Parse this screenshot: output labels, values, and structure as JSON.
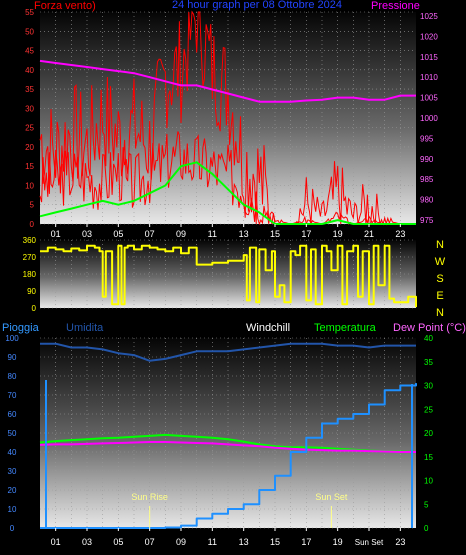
{
  "colors": {
    "background": "#000000",
    "wind": "#ff0000",
    "gust": "#ff0000",
    "pressure": "#ff00ff",
    "green": "#00ff00",
    "direction": "#ffff00",
    "humidity": "#2255aa",
    "rain": "#1e90ff",
    "temperature": "#00ff00",
    "dewpoint": "#ff00ff",
    "windchill": "#ffffff",
    "sun": "#ffff88"
  },
  "chart_data": [
    {
      "type": "line",
      "title": "24 hour graph per  08 Ottobre 2024",
      "left_axis_label": "Forza vento)",
      "right_axis_label": "Pressione",
      "x_hours": [
        0,
        1,
        2,
        3,
        4,
        5,
        6,
        7,
        8,
        9,
        10,
        11,
        12,
        13,
        14,
        15,
        16,
        17,
        18,
        19,
        20,
        21,
        22,
        23,
        24
      ],
      "xticks": [
        "01",
        "03",
        "05",
        "07",
        "09",
        "11",
        "13",
        "15",
        "17",
        "19",
        "21",
        "23"
      ],
      "left_ylim": [
        0,
        55
      ],
      "left_yticks": [
        0,
        5,
        10,
        15,
        20,
        25,
        30,
        35,
        40,
        45,
        50,
        55
      ],
      "right_ylim": [
        974,
        1026
      ],
      "right_yticks": [
        975,
        980,
        985,
        990,
        995,
        1000,
        1005,
        1010,
        1015,
        1020,
        1025
      ],
      "series": [
        {
          "key": "gust",
          "axis": "left",
          "values": [
            22,
            18,
            24,
            20,
            28,
            22,
            25,
            20,
            38,
            40,
            55,
            40,
            35,
            16,
            12,
            0,
            0,
            5,
            2,
            7,
            2,
            5,
            1,
            0,
            0
          ]
        },
        {
          "key": "wind",
          "axis": "left",
          "values": [
            10,
            12,
            13,
            12,
            11,
            14,
            10,
            13,
            16,
            18,
            16,
            15,
            13,
            10,
            6,
            1,
            0,
            1,
            0,
            2,
            0,
            1,
            0,
            0,
            0
          ]
        },
        {
          "key": "green",
          "axis": "left",
          "values": [
            2,
            3,
            4,
            5,
            6,
            5,
            6,
            8,
            10,
            15,
            16,
            13,
            9,
            5,
            3,
            0,
            0,
            0,
            0,
            1,
            0,
            0,
            0,
            0,
            0
          ]
        },
        {
          "key": "pressure",
          "axis": "right",
          "values": [
            1014,
            1013.5,
            1013,
            1012.5,
            1012,
            1011.5,
            1011,
            1010,
            1009,
            1008,
            1008,
            1007,
            1006,
            1005,
            1004,
            1004,
            1004,
            1004.3,
            1004.5,
            1005,
            1005,
            1004.5,
            1004.5,
            1005.5,
            1005.5
          ]
        }
      ]
    },
    {
      "type": "line",
      "title": "",
      "right_axis_label": [
        "N",
        "W",
        "S",
        "E",
        "N"
      ],
      "ylim": [
        0,
        360
      ],
      "yticks": [
        0,
        90,
        180,
        270,
        360
      ],
      "series": [
        {
          "key": "direction",
          "x": [
            0,
            0.5,
            1,
            1.5,
            2,
            2.5,
            3,
            3.5,
            3.8,
            4,
            4.2,
            4.6,
            5,
            5.2,
            5.4,
            5.6,
            6,
            6.5,
            7,
            7.5,
            8,
            8.5,
            9,
            9.5,
            10,
            11,
            12,
            13,
            13.2,
            13.4,
            13.8,
            14,
            14.4,
            14.8,
            15,
            15.3,
            15.6,
            16,
            16.3,
            16.6,
            17,
            17.3,
            17.6,
            18,
            18.3,
            18.6,
            19,
            19.3,
            19.6,
            20,
            20.3,
            20.6,
            21,
            21.3,
            21.6,
            22,
            22.3,
            22.6,
            23,
            23.5,
            24
          ],
          "values": [
            300,
            320,
            310,
            300,
            315,
            305,
            330,
            320,
            300,
            60,
            300,
            20,
            330,
            20,
            320,
            330,
            310,
            330,
            320,
            310,
            300,
            320,
            290,
            320,
            230,
            240,
            250,
            280,
            40,
            320,
            30,
            310,
            200,
            300,
            60,
            120,
            30,
            300,
            280,
            330,
            40,
            310,
            20,
            330,
            300,
            200,
            330,
            20,
            300,
            330,
            60,
            300,
            20,
            330,
            120,
            330,
            50,
            30,
            30,
            60,
            5
          ]
        }
      ]
    },
    {
      "type": "line",
      "legend": [
        "Pioggia",
        "Umidita",
        "Windchill",
        "Temperatura",
        "Dew Point (°C)"
      ],
      "left_ylim": [
        0,
        100
      ],
      "left_yticks": [
        0,
        10,
        20,
        30,
        40,
        50,
        60,
        70,
        80,
        90,
        100
      ],
      "right_ylim": [
        0,
        40
      ],
      "right_yticks": [
        0,
        5,
        10,
        15,
        20,
        25,
        30,
        35,
        40
      ],
      "xticks": [
        "01",
        "03",
        "05",
        "07",
        "09",
        "11",
        "13",
        "15",
        "17",
        "19",
        "Sun Set",
        "23"
      ],
      "x_hours": [
        0,
        1,
        2,
        3,
        4,
        5,
        6,
        7,
        8,
        9,
        10,
        11,
        12,
        13,
        14,
        15,
        16,
        17,
        18,
        19,
        20,
        21,
        22,
        23,
        24
      ],
      "series": [
        {
          "key": "humidity",
          "axis": "left",
          "values": [
            97,
            97,
            95,
            95,
            94,
            92,
            91,
            88,
            89,
            91,
            93,
            93,
            93,
            94,
            95,
            96,
            97,
            97,
            97,
            96,
            96,
            95,
            96,
            96,
            96
          ]
        },
        {
          "key": "temperature",
          "axis": "right",
          "values": [
            18,
            18.3,
            18.5,
            18.7,
            18.9,
            19.0,
            19.2,
            19.4,
            19.6,
            19.4,
            19.2,
            19.0,
            18.7,
            18.2,
            17.6,
            17.2,
            17.0,
            17.0,
            16.9,
            16.7,
            16.5,
            16.3,
            16.2,
            16.1,
            16.0
          ]
        },
        {
          "key": "dewpoint",
          "axis": "right",
          "values": [
            17.5,
            17.6,
            17.6,
            17.7,
            17.8,
            17.9,
            18.0,
            18.1,
            18.1,
            18.0,
            17.9,
            17.8,
            17.6,
            17.4,
            17.2,
            16.9,
            16.7,
            16.5,
            16.4,
            16.3,
            16.3,
            16.2,
            16.1,
            16.0,
            16.0
          ]
        },
        {
          "key": "rain",
          "axis": "right",
          "note": "cumulative",
          "values": [
            0,
            0,
            0,
            0,
            0,
            0,
            0,
            0,
            0.1,
            0.5,
            2,
            3,
            4,
            5,
            8,
            11,
            16,
            19,
            22,
            23,
            24,
            26,
            29,
            30,
            30.5
          ]
        }
      ],
      "annotations": [
        {
          "label": "Sun Rise",
          "hour": 7.0
        },
        {
          "label": "Sun Set",
          "hour": 18.6
        }
      ]
    }
  ]
}
